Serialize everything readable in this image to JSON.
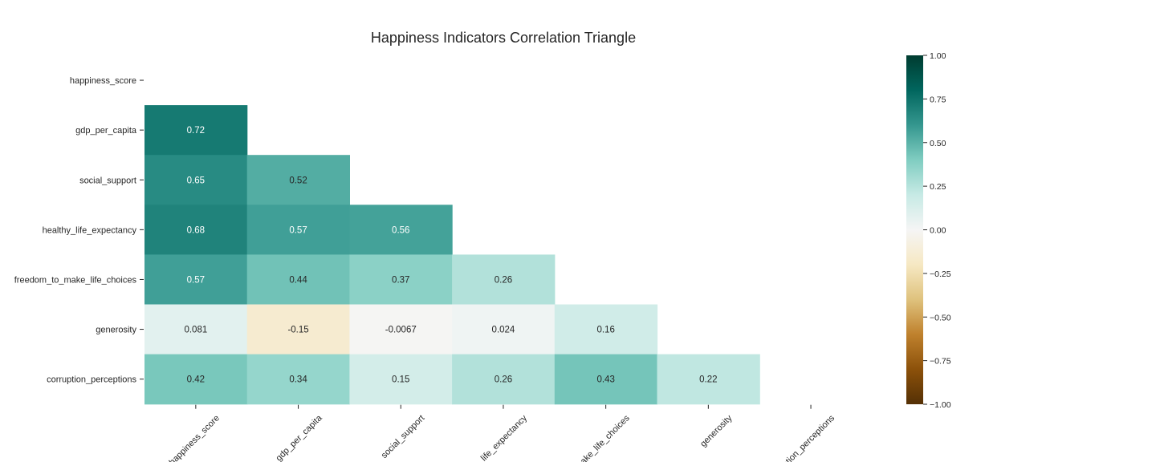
{
  "chart_data": {
    "type": "heatmap",
    "title": "Happiness Indicators Correlation Triangle",
    "variables": [
      "happiness_score",
      "gdp_per_capita",
      "social_support",
      "healthy_life_expectancy",
      "freedom_to_make_life_choices",
      "generosity",
      "corruption_perceptions"
    ],
    "x_tick_labels": [
      "happiness_score",
      "gdp_per_capita",
      "social_support",
      "_life_expectancy",
      "ake_life_choices",
      "generosity",
      "ption_perceptions"
    ],
    "mask": "upper triangle including diagonal",
    "values": [
      [
        null,
        null,
        null,
        null,
        null,
        null,
        null
      ],
      [
        0.72,
        null,
        null,
        null,
        null,
        null,
        null
      ],
      [
        0.65,
        0.52,
        null,
        null,
        null,
        null,
        null
      ],
      [
        0.68,
        0.57,
        0.56,
        null,
        null,
        null,
        null
      ],
      [
        0.57,
        0.44,
        0.37,
        0.26,
        null,
        null,
        null
      ],
      [
        0.081,
        -0.15,
        -0.0067,
        0.024,
        0.16,
        null,
        null
      ],
      [
        0.42,
        0.34,
        0.15,
        0.26,
        0.43,
        0.22,
        null
      ]
    ],
    "value_labels": [
      [],
      [
        "0.72"
      ],
      [
        "0.65",
        "0.52"
      ],
      [
        "0.68",
        "0.57",
        "0.56"
      ],
      [
        "0.57",
        "0.44",
        "0.37",
        "0.26"
      ],
      [
        "0.081",
        "-0.15",
        "-0.0067",
        "0.024",
        "0.16"
      ],
      [
        "0.42",
        "0.34",
        "0.15",
        "0.26",
        "0.43",
        "0.22"
      ]
    ],
    "colormap": "BrBG",
    "vmin": -1.0,
    "vmax": 1.0,
    "colorbar_ticks": [
      1.0,
      0.75,
      0.5,
      0.25,
      0.0,
      -0.25,
      -0.5,
      -0.75,
      -1.0
    ],
    "colorbar_tick_labels": [
      "1.00",
      "0.75",
      "0.50",
      "0.25",
      "0.00",
      "−0.25",
      "−0.50",
      "−0.75",
      "−1.00"
    ],
    "colorbar_placement": "right"
  }
}
